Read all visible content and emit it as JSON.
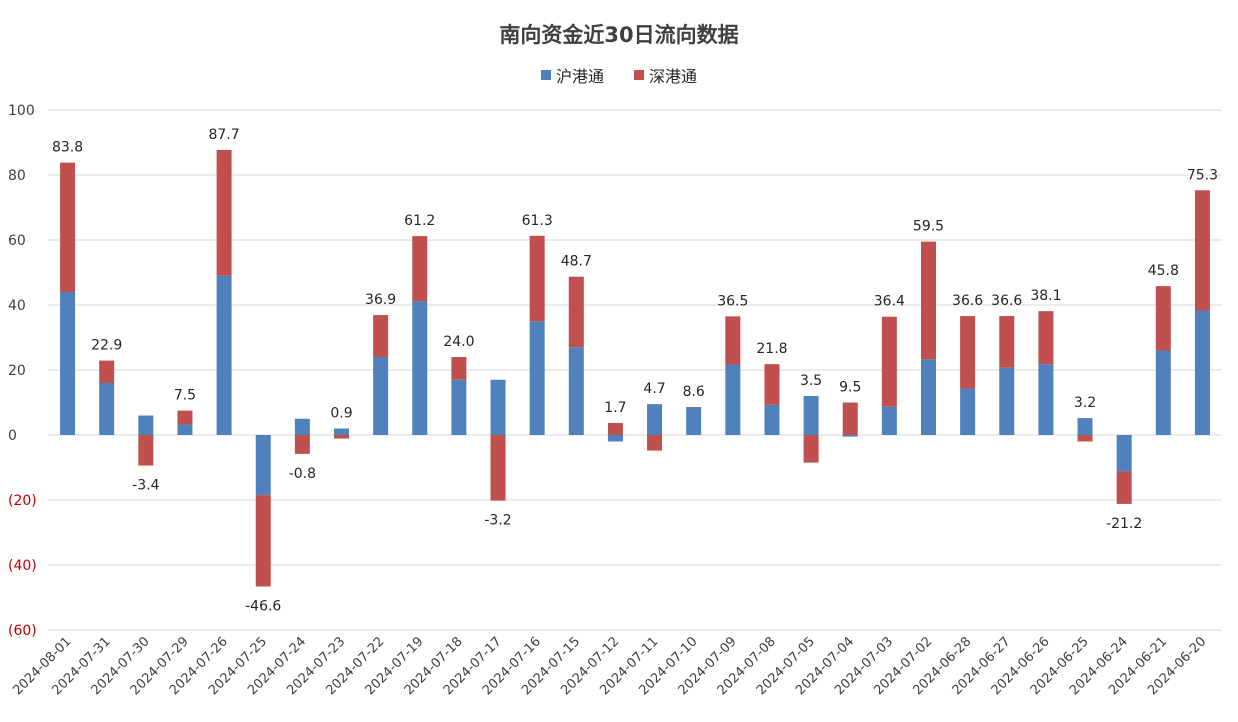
{
  "chart_data": {
    "type": "bar",
    "stacked": true,
    "title": "南向资金近30日流向数据",
    "legend_position": "top-center",
    "grid": true,
    "ylim": [
      -60,
      100
    ],
    "yticks": [
      100,
      80,
      60,
      40,
      20,
      0,
      -20,
      -40,
      -60
    ],
    "ytick_labels": [
      "100",
      "80",
      "60",
      "40",
      "20",
      "0",
      "(20)",
      "(40)",
      "(60)"
    ],
    "categories": [
      "2024-08-01",
      "2024-07-31",
      "2024-07-30",
      "2024-07-29",
      "2024-07-26",
      "2024-07-25",
      "2024-07-24",
      "2024-07-23",
      "2024-07-22",
      "2024-07-19",
      "2024-07-18",
      "2024-07-17",
      "2024-07-16",
      "2024-07-15",
      "2024-07-12",
      "2024-07-11",
      "2024-07-10",
      "2024-07-09",
      "2024-07-08",
      "2024-07-05",
      "2024-07-04",
      "2024-07-03",
      "2024-07-02",
      "2024-06-28",
      "2024-06-27",
      "2024-06-26",
      "2024-06-25",
      "2024-06-24",
      "2024-06-21",
      "2024-06-20"
    ],
    "series": [
      {
        "name": "沪港通",
        "color": "#4f81bd",
        "values": [
          44,
          16,
          6,
          3.2,
          49,
          -18.5,
          5,
          2,
          24,
          41.2,
          17,
          17,
          35,
          27,
          -2,
          9.5,
          8.5,
          21.7,
          9.3,
          12,
          -0.5,
          8.7,
          23.3,
          14.3,
          20.7,
          21.8,
          5.2,
          -11.2,
          26,
          38.3
        ]
      },
      {
        "name": "深港通",
        "color": "#c0504d",
        "values": [
          39.8,
          6.9,
          -9.4,
          4.3,
          38.7,
          -28.1,
          -5.8,
          -1.1,
          12.9,
          20,
          7,
          -20.2,
          26.3,
          21.7,
          3.7,
          -4.8,
          0.1,
          14.8,
          12.5,
          -8.5,
          10,
          27.7,
          36.2,
          22.3,
          15.9,
          16.3,
          -2,
          -10,
          19.8,
          37
        ]
      }
    ],
    "totals": [
      83.8,
      22.9,
      -3.4,
      7.5,
      87.7,
      -46.6,
      -0.8,
      0.9,
      36.9,
      61.2,
      24.0,
      -3.2,
      61.3,
      48.7,
      1.7,
      4.7,
      8.6,
      36.5,
      21.8,
      3.5,
      9.5,
      36.4,
      59.5,
      36.6,
      36.6,
      38.1,
      3.2,
      -21.2,
      45.8,
      75.3
    ],
    "total_labels": [
      "83.8",
      "22.9",
      "-3.4",
      "7.5",
      "87.7",
      "-46.6",
      "-0.8",
      "0.9",
      "36.9",
      "61.2",
      "24.0",
      "-3.2",
      "61.3",
      "48.7",
      "1.7",
      "4.7",
      "8.6",
      "36.5",
      "21.8",
      "3.5",
      "9.5",
      "36.4",
      "59.5",
      "36.6",
      "36.6",
      "38.1",
      "3.2",
      "-21.2",
      "45.8",
      "75.3"
    ]
  }
}
